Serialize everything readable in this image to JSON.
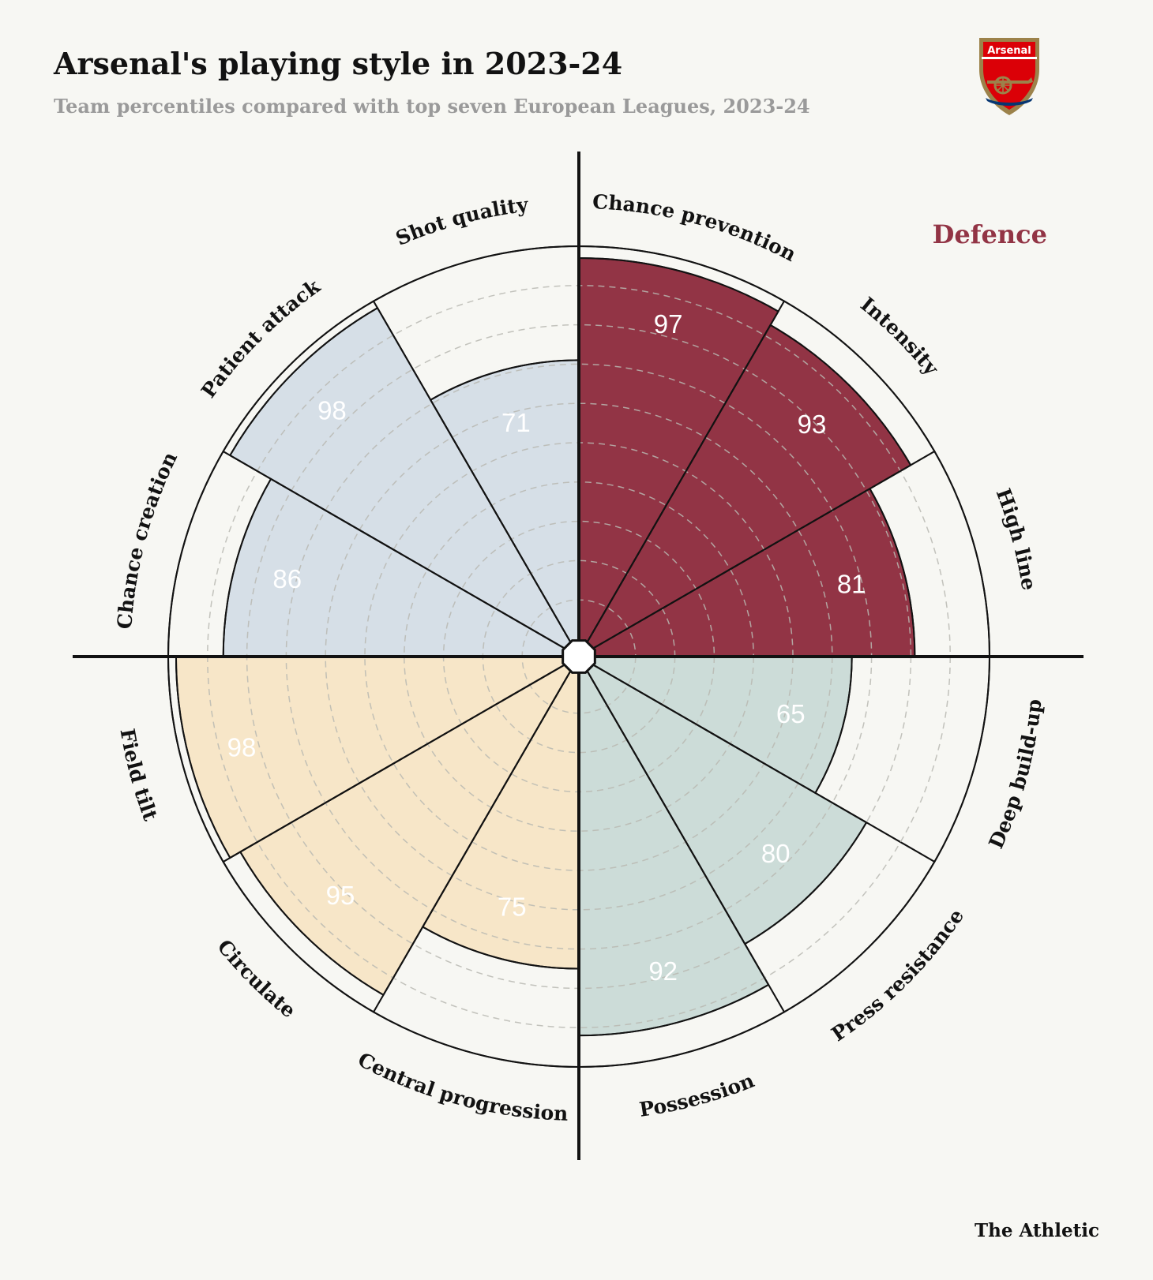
{
  "title": "Arsenal's playing style in 2023-24",
  "subtitle": "Team percentiles compared with top seven European Leagues, 2023-24",
  "badge": {
    "text": "Arsenal",
    "icon": "arsenal-crest-icon",
    "colors": {
      "red": "#db0007",
      "gold": "#9c824a",
      "navy": "#063672"
    }
  },
  "source": "The Athletic",
  "chart_data": {
    "type": "polar-bar",
    "rlim": [
      0,
      100
    ],
    "grid": true,
    "group_label": {
      "text": "Defence",
      "color": "#923445",
      "position": "top-right"
    },
    "categories": [
      {
        "label": "Chance prevention",
        "value": 97,
        "group": "defence"
      },
      {
        "label": "Intensity",
        "value": 93,
        "group": "defence"
      },
      {
        "label": "High line",
        "value": 81,
        "group": "defence"
      },
      {
        "label": "Deep build-up",
        "value": 65,
        "group": "possession"
      },
      {
        "label": "Press resistance",
        "value": 80,
        "group": "possession"
      },
      {
        "label": "Possession",
        "value": 92,
        "group": "possession"
      },
      {
        "label": "Central progression",
        "value": 75,
        "group": "progression"
      },
      {
        "label": "Circulate",
        "value": 95,
        "group": "progression"
      },
      {
        "label": "Field tilt",
        "value": 98,
        "group": "progression"
      },
      {
        "label": "Chance creation",
        "value": 86,
        "group": "attack"
      },
      {
        "label": "Patient attack",
        "value": 98,
        "group": "attack"
      },
      {
        "label": "Shot quality",
        "value": 71,
        "group": "attack"
      }
    ],
    "group_colors": {
      "defence": "#923445",
      "possession": "#ccdcd8",
      "progression": "#f7e6c8",
      "attack": "#d6dfe7"
    }
  }
}
